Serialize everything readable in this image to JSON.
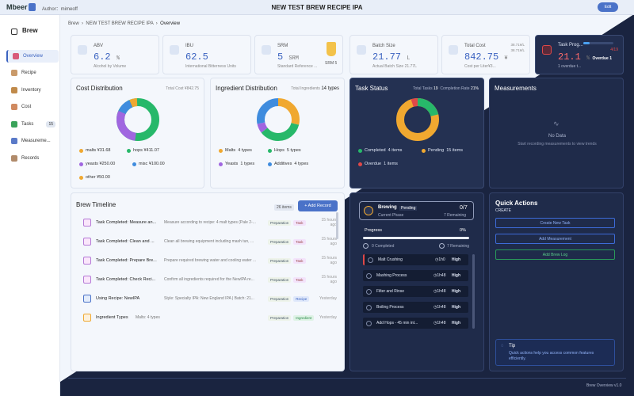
{
  "app": {
    "logo": "Mbeer",
    "author": "Author：mimeoff",
    "title": "NEW TEST BREW RECIPE IPA",
    "edit": "Edit"
  },
  "sidebar": {
    "title": "Brew",
    "items": [
      {
        "label": "Overview",
        "icon": "overview-icon",
        "color": "#d85a7a"
      },
      {
        "label": "Recipe",
        "icon": "recipe-icon",
        "color": "#c99a6a"
      },
      {
        "label": "Inventory",
        "icon": "inventory-icon",
        "color": "#c08a4a"
      },
      {
        "label": "Cost",
        "icon": "cost-icon",
        "color": "#d08a60"
      },
      {
        "label": "Tasks",
        "icon": "tasks-icon",
        "color": "#3aa35a",
        "badge": "15"
      },
      {
        "label": "Measureme...",
        "icon": "chart-icon",
        "color": "#5a7ac8"
      },
      {
        "label": "Records",
        "icon": "records-icon",
        "color": "#b08a6a"
      }
    ]
  },
  "breadcrumb": {
    "home": "Brew",
    "recipe": "NEW TEST BREW RECIPE IPA",
    "page": "Overview"
  },
  "kpis": [
    {
      "label": "ABV",
      "value": "6.2",
      "unit": "%",
      "sub": "Alcohol by Volume"
    },
    {
      "label": "IBU",
      "value": "62.5",
      "unit": "",
      "sub": "International Bitterness Units"
    },
    {
      "label": "SRM",
      "value": "5",
      "unit": "SRM",
      "sub": "Standard Reference ...",
      "extra": "SRM 5"
    },
    {
      "label": "Batch Size",
      "value": "21.77",
      "unit": "L",
      "sub": "Actual Batch Size 21.77L"
    },
    {
      "label": "Total Cost",
      "value": "842.75",
      "unit": "¥",
      "sub": "Cost per Liter¥3...",
      "extra1": "38.71¥/L",
      "extra2": "38.71¥/L"
    },
    {
      "label": "Task Prog...",
      "value": "21.1",
      "unit": "%",
      "sub": "1 overdue t...",
      "extra1": "4/19",
      "extra2": "Overdue 1"
    }
  ],
  "cost": {
    "title": "Cost Distribution",
    "meta": "Total Cost ¥842.75",
    "legend": [
      {
        "label": "malts",
        "value": "¥31.68",
        "color": "#f0a830"
      },
      {
        "label": "hops",
        "value": "¥411.07",
        "color": "#27b86a"
      },
      {
        "label": "yeasts",
        "value": "¥250.00",
        "color": "#a066e0"
      },
      {
        "label": "misc",
        "value": "¥100.00",
        "color": "#3f8cde"
      },
      {
        "label": "other",
        "value": "¥50.00",
        "color": "#f0a830"
      }
    ]
  },
  "ingredients": {
    "title": "Ingredient Distribution",
    "meta": "Total Ingredients",
    "count": "14 types",
    "legend": [
      {
        "label": "Malts",
        "value": "4 types",
        "color": "#f0a830"
      },
      {
        "label": "Hops",
        "value": "5 types",
        "color": "#27b86a"
      },
      {
        "label": "Yeasts",
        "value": "1 types",
        "color": "#a066e0"
      },
      {
        "label": "Additives",
        "value": "4 types",
        "color": "#3f8cde"
      }
    ]
  },
  "taskstatus": {
    "title": "Task Status",
    "meta1": "Total Tasks",
    "total": "19",
    "meta2": "Completion Rate",
    "rate": "21%",
    "legend": [
      {
        "label": "Completed",
        "value": "4 items",
        "color": "#27b86a"
      },
      {
        "label": "Pending",
        "value": "15 items",
        "color": "#f0a830"
      },
      {
        "label": "Overdue",
        "value": "1 items",
        "color": "#e04848"
      }
    ]
  },
  "measurements": {
    "title": "Measurements",
    "nodata": "No Data",
    "hint": "Start recording measurements to view trends"
  },
  "timeline": {
    "title": "Brew Timeline",
    "count": "26 items",
    "add": "+ Add Record",
    "rows": [
      {
        "title": "Task Completed: Measure an...",
        "desc": "Measure according to recipe: 4 malt types (Pale 2-...",
        "tags": [
          "Preparation",
          "Task"
        ],
        "time": "15 hours ago"
      },
      {
        "title": "Task Completed: Clean and ...",
        "desc": "Clean all brewing equipment including mash tun, ...",
        "tags": [
          "Preparation",
          "Task"
        ],
        "time": "15 hours ago"
      },
      {
        "title": "Task Completed: Prepare Bre...",
        "desc": "Prepare required brewing water and cooling water ...",
        "tags": [
          "Preparation",
          "Task"
        ],
        "time": "15 hours ago"
      },
      {
        "title": "Task Completed: Check Reci...",
        "desc": "Confirm all ingredients required for the NewIPA re...",
        "tags": [
          "Preparation",
          "Task"
        ],
        "time": "15 hours ago"
      },
      {
        "title": "Using Recipe: NewIPA",
        "desc": "Style: Specialty IPA: New England IPA | Batch: 21...",
        "tags": [
          "Preparation",
          "Recipe"
        ],
        "time": "Yesterday"
      },
      {
        "title": "Ingredient Types",
        "desc": "Malts: 4 types",
        "tags": [
          "Preparation",
          "Ingredient"
        ],
        "time": "Yesterday"
      }
    ]
  },
  "phase": {
    "title": "Brewing",
    "status": "Pending",
    "count": "0/7",
    "sub": "Current Phase",
    "remaining": "7 Remaining",
    "progress_label": "Progress",
    "progress": "0%",
    "completed": "0 Completed",
    "remaining2": "7 Remaining",
    "tasks": [
      {
        "name": "Malt Crushing",
        "time": "1h0",
        "prio": "High"
      },
      {
        "name": "Mashing Process",
        "time": "1h48",
        "prio": "High"
      },
      {
        "name": "Filter and Rinse",
        "time": "1h48",
        "prio": "High"
      },
      {
        "name": "Boiling Process",
        "time": "1h48",
        "prio": "High"
      },
      {
        "name": "Add Hops - 45 min int...",
        "time": "1h48",
        "prio": "High"
      }
    ]
  },
  "quick": {
    "title": "Quick Actions",
    "create": "CREATE",
    "b1": "Create New Task",
    "b2": "Add Measurement",
    "b3": "Add Brew Log",
    "tip_title": "Tip",
    "tip": "Quick actions help you access common features efficiently."
  },
  "footer": "Brew Overview v1.0"
}
